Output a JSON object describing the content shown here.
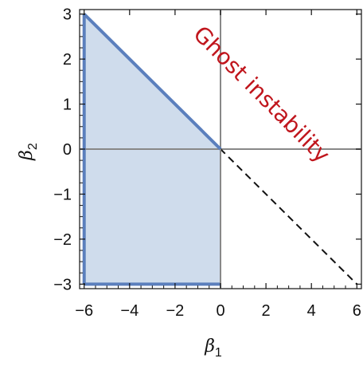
{
  "chart_data": {
    "type": "area",
    "title": "",
    "xlabel": {
      "symbol": "β",
      "subscript": "1"
    },
    "ylabel": {
      "symbol": "β",
      "subscript": "2"
    },
    "xlim": [
      -6.2,
      6.2
    ],
    "ylim": [
      -3.1,
      3.1
    ],
    "x_ticks": [
      "−6",
      "−4",
      "−2",
      "0",
      "2",
      "4",
      "6"
    ],
    "y_ticks": [
      "3",
      "2",
      "1",
      "0",
      "−1",
      "−2",
      "−3"
    ],
    "x_tick_values": [
      -6,
      -4,
      -2,
      0,
      2,
      4,
      6
    ],
    "y_tick_values": [
      3,
      2,
      1,
      0,
      -1,
      -2,
      -3
    ],
    "shaded_region": {
      "description_points": [
        [
          -6,
          3
        ],
        [
          0,
          0
        ],
        [
          0,
          -3
        ],
        [
          -6,
          -3
        ]
      ],
      "fill_color": "#cfdcec",
      "edge_color": "#5b7fbd"
    },
    "dashed_line": {
      "points": [
        [
          -6,
          3
        ],
        [
          6,
          -3
        ]
      ],
      "color": "#111111"
    },
    "reference_lines": {
      "x0": 0,
      "y0": 0,
      "color": "#888888"
    },
    "grid": false,
    "frame": true,
    "annotation": {
      "text": "Ghost instability",
      "color": "#c0161d"
    }
  }
}
